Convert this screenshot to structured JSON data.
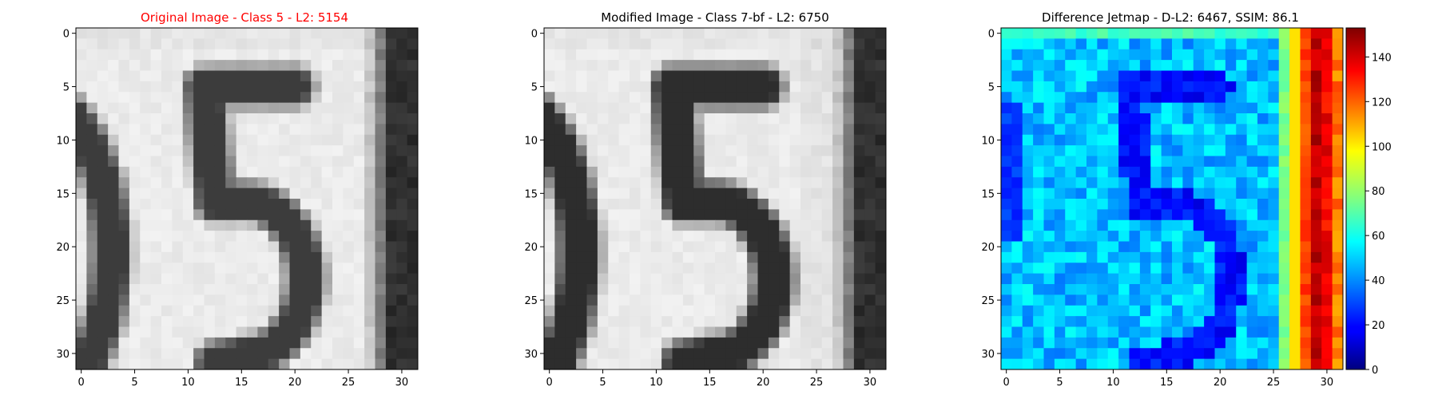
{
  "chart_data": [
    {
      "type": "heatmap",
      "title": "Original Image - Class 5 - L2: 5154",
      "title_color": "#ff0000",
      "colormap": "gray",
      "grid": false,
      "x_ticks": [
        "0",
        "5",
        "10",
        "15",
        "20",
        "25",
        "30"
      ],
      "y_ticks": [
        "0",
        "5",
        "10",
        "15",
        "20",
        "25",
        "30"
      ],
      "xlim": [
        -0.5,
        31.5
      ],
      "ylim": [
        31.5,
        -0.5
      ],
      "shape": [
        32,
        32
      ]
    },
    {
      "type": "heatmap",
      "title": "Modified Image - Class 7-bf - L2: 6750",
      "title_color": "#000000",
      "colormap": "gray",
      "grid": false,
      "x_ticks": [
        "0",
        "5",
        "10",
        "15",
        "20",
        "25",
        "30"
      ],
      "y_ticks": [
        "0",
        "5",
        "10",
        "15",
        "20",
        "25",
        "30"
      ],
      "xlim": [
        -0.5,
        31.5
      ],
      "ylim": [
        31.5,
        -0.5
      ],
      "shape": [
        32,
        32
      ]
    },
    {
      "type": "heatmap",
      "title": "Difference Jetmap - D-L2: 6467, SSIM: 86.1",
      "title_color": "#000000",
      "colormap": "jet",
      "grid": false,
      "x_ticks": [
        "0",
        "5",
        "10",
        "15",
        "20",
        "25",
        "30"
      ],
      "y_ticks": [
        "0",
        "5",
        "10",
        "15",
        "20",
        "25",
        "30"
      ],
      "xlim": [
        -0.5,
        31.5
      ],
      "ylim": [
        31.5,
        -0.5
      ],
      "shape": [
        32,
        32
      ],
      "colorbar": {
        "range": [
          0,
          153
        ],
        "ticks": [
          "0",
          "20",
          "40",
          "60",
          "80",
          "100",
          "120",
          "140"
        ]
      }
    }
  ]
}
